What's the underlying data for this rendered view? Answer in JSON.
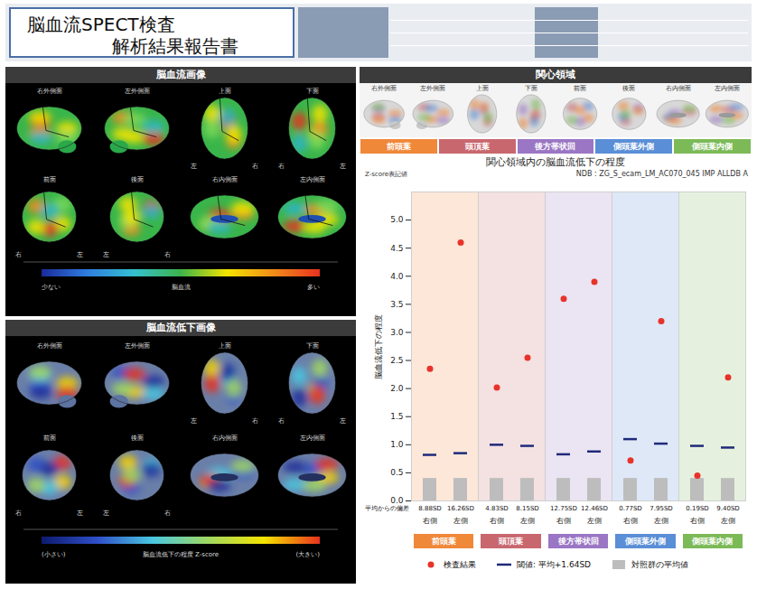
{
  "header": {
    "title_lines": [
      "脳血流SPECT検査",
      "解析結果報告書"
    ]
  },
  "views": [
    {
      "name": "右外側面",
      "orientation": null
    },
    {
      "name": "左外側面",
      "orientation": null
    },
    {
      "name": "上面",
      "orientation": [
        "左",
        "右"
      ]
    },
    {
      "name": "下面",
      "orientation": [
        "右",
        "左"
      ]
    },
    {
      "name": "前面",
      "orientation": [
        "右",
        "左"
      ]
    },
    {
      "name": "後面",
      "orientation": [
        "左",
        "右"
      ]
    },
    {
      "name": "右内側面",
      "orientation": null
    },
    {
      "name": "左内側面",
      "orientation": null
    }
  ],
  "flow_panel": {
    "title": "脳血流画像",
    "colorbar": {
      "low": "少ない",
      "label": "脳血流",
      "high": "多い"
    }
  },
  "decline_panel": {
    "title": "脳血流低下画像",
    "colorbar": {
      "low": "(小さい)",
      "label": "脳血流低下の程度 Z-score",
      "high": "(大きい)"
    }
  },
  "roi_panel": {
    "title": "関心領域"
  },
  "chart_data": {
    "type": "dot",
    "title": "関心領域内の脳血流低下の程度",
    "subtitle": "NDB : ZG_S_ecam_LM_AC070_045 IMP ALLDB A",
    "note": "Z-score表記値",
    "y_label": "脳血流低下の程度",
    "deviation_row_label": "平均からの偏差",
    "groups": [
      {
        "name": "前頭葉",
        "color": "#f0883a",
        "categories": [
          "右側",
          "左側"
        ],
        "deviation_labels": [
          "8.88SD",
          "16.26SD"
        ]
      },
      {
        "name": "頭頂葉",
        "color": "#c9676f",
        "categories": [
          "右側",
          "左側"
        ],
        "deviation_labels": [
          "4.83SD",
          "8.15SD"
        ]
      },
      {
        "name": "後方帯状回",
        "color": "#9a76c4",
        "categories": [
          "右側",
          "左側"
        ],
        "deviation_labels": [
          "12.75SD",
          "12.46SD"
        ]
      },
      {
        "name": "側頭葉外側",
        "color": "#5a8ed6",
        "categories": [
          "右側",
          "左側"
        ],
        "deviation_labels": [
          "0.77SD",
          "7.95SD"
        ]
      },
      {
        "name": "側頭葉内側",
        "color": "#7cba58",
        "categories": [
          "右側",
          "左側"
        ],
        "deviation_labels": [
          "0.19SD",
          "9.40SD"
        ]
      }
    ],
    "series": [
      {
        "name": "検査結果",
        "type": "scatter",
        "marker": "circle",
        "color": "#e8332b",
        "values": [
          2.35,
          4.6,
          2.02,
          2.55,
          3.6,
          3.9,
          0.72,
          3.2,
          0.45,
          2.2
        ]
      },
      {
        "name": "閾値: 平均+1.64SD",
        "type": "tick",
        "line_style": "solid",
        "color": "#1f2a7a",
        "values": [
          0.82,
          0.85,
          1.0,
          0.98,
          0.83,
          0.88,
          1.1,
          1.02,
          0.98,
          0.95
        ]
      },
      {
        "name": "対照群の平均値",
        "type": "bar",
        "color": "#bdbdbd",
        "values": [
          0.4,
          0.4,
          0.4,
          0.4,
          0.4,
          0.4,
          0.4,
          0.4,
          0.4,
          0.4
        ]
      }
    ],
    "ylim": [
      0,
      5.5
    ],
    "yticks": [
      {
        "value": 0,
        "label": "0.0"
      },
      {
        "value": 0.5,
        "label": "0.5"
      },
      {
        "value": 1,
        "label": "1.0"
      },
      {
        "value": 1.5,
        "label": "1.5"
      },
      {
        "value": 2,
        "label": "2.0"
      },
      {
        "value": 2.5,
        "label": "2.5"
      },
      {
        "value": 3,
        "label": "3.0"
      },
      {
        "value": 3.5,
        "label": "3.5"
      },
      {
        "value": 4,
        "label": "4.0"
      },
      {
        "value": 4.5,
        "label": "4.5"
      },
      {
        "value": 5,
        "label": "5.0"
      }
    ],
    "grid": false,
    "legend": "bottom"
  }
}
